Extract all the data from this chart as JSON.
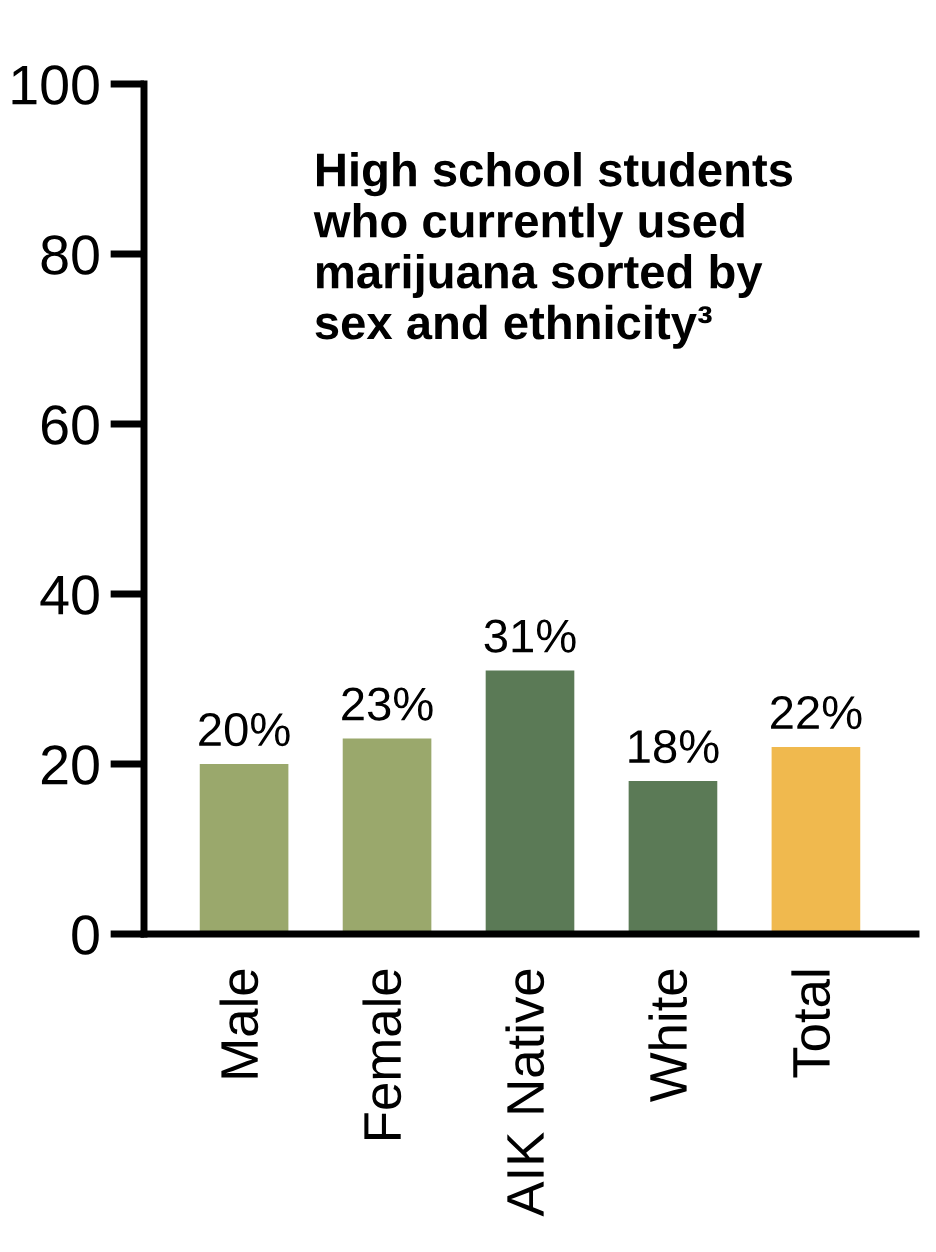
{
  "chart_data": {
    "type": "bar",
    "title": "High school students\nwho currently used\nmarijuana sorted by\nsex and ethnicity³",
    "categories": [
      "Male",
      "Female",
      "AIK Native",
      "White",
      "Total"
    ],
    "values": [
      20,
      23,
      31,
      18,
      22
    ],
    "colors": [
      "#9aa86c",
      "#9aa86c",
      "#5b7a56",
      "#5b7a56",
      "#f0b94e"
    ],
    "value_labels": [
      "20%",
      "23%",
      "31%",
      "18%",
      "22%"
    ],
    "ylim": [
      0,
      100
    ],
    "yticks": [
      0,
      20,
      40,
      60,
      80,
      100
    ],
    "grid": false
  }
}
